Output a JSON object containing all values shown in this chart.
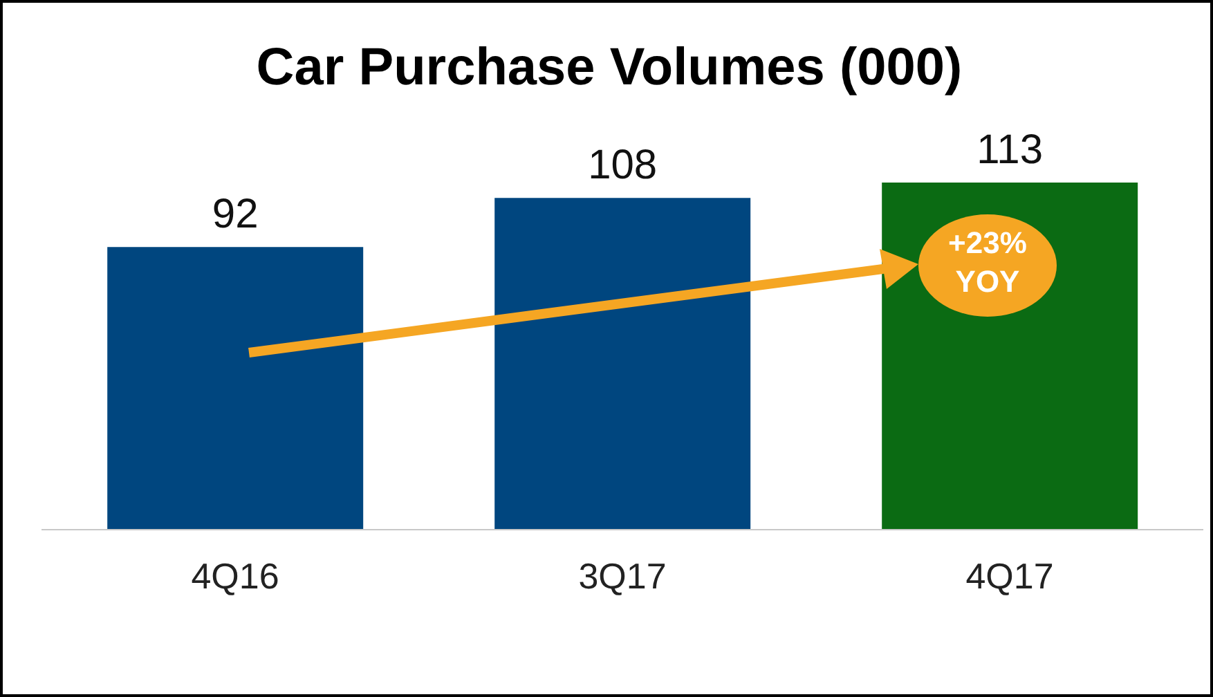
{
  "chart_data": {
    "type": "bar",
    "title": "Car Purchase Volumes (000)",
    "categories": [
      "4Q16",
      "3Q17",
      "4Q17"
    ],
    "values": [
      92,
      108,
      113
    ],
    "colors": [
      "#00467f",
      "#00467f",
      "#0b6b13"
    ],
    "data_labels": true,
    "annotations": [
      "+23% YOY"
    ]
  }
}
